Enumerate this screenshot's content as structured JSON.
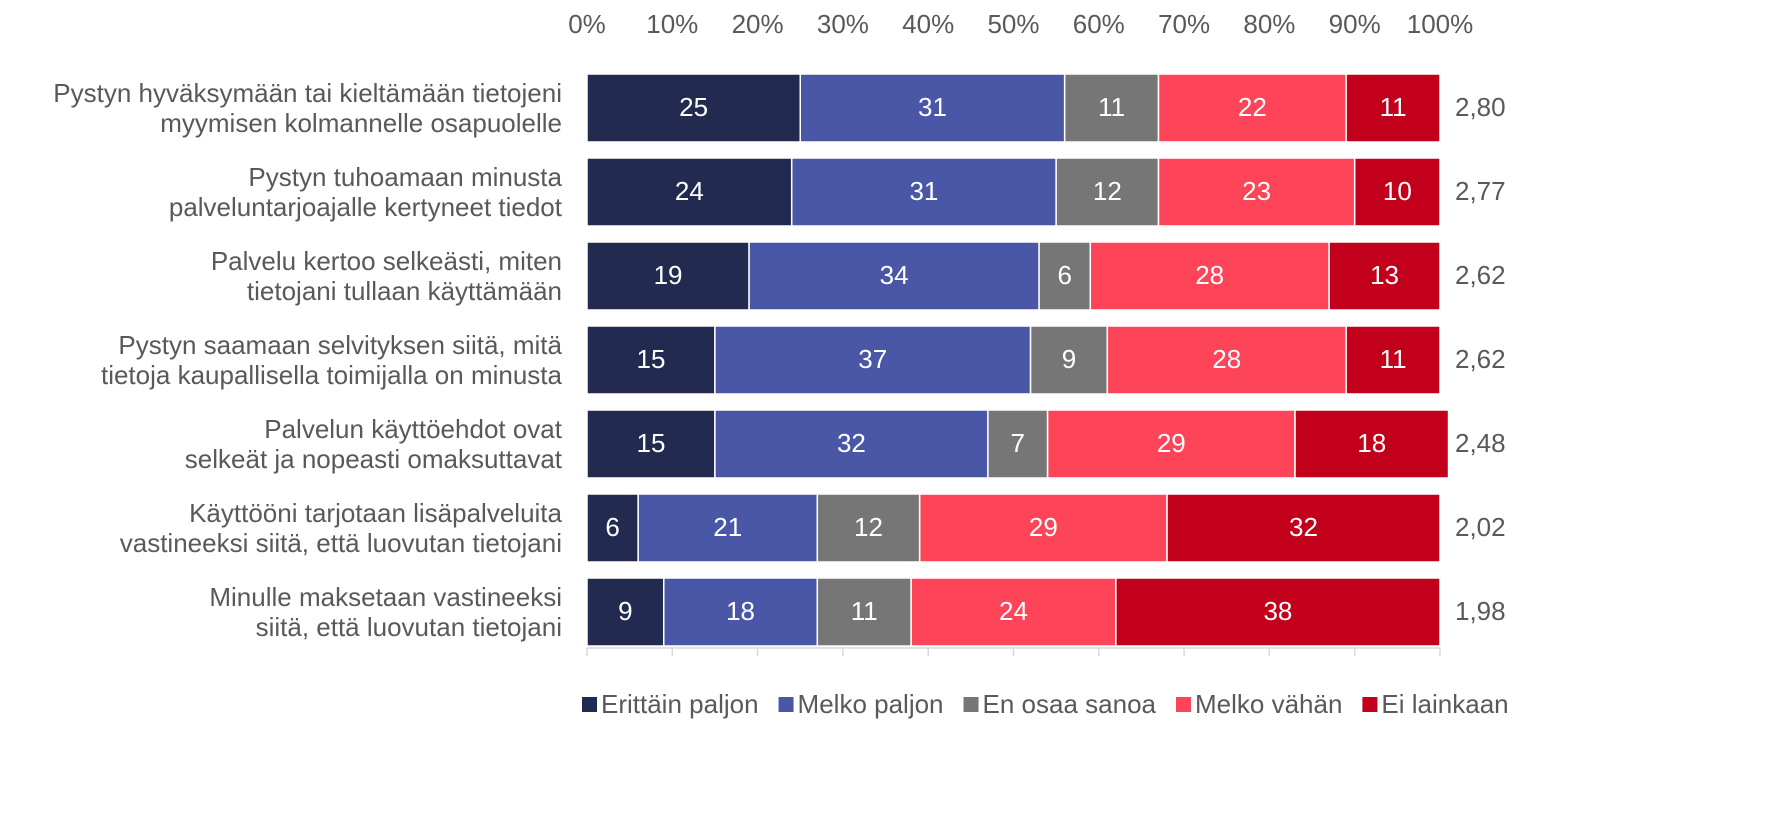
{
  "chart_data": {
    "type": "stacked-bar-horizontal",
    "categories": [
      "Pystyn hyväksymään tai kieltämään tietojeni\nmyymisen kolmannelle osapuolelle",
      "Pystyn tuhoamaan minusta\npalveluntarjoajalle kertyneet tiedot",
      "Palvelu kertoo selkeästi, miten\ntietojani tullaan käyttämään",
      "Pystyn saamaan selvityksen siitä, mitä\ntietoja kaupallisella toimijalla on minusta",
      "Palvelun käyttöehdot ovat\nselkeät ja nopeasti omaksuttavat",
      "Käyttööni tarjotaan lisäpalveluita\nvastineeksi siitä, että luovutan tietojani",
      "Minulle maksetaan vastineeksi\nsiitä, että luovutan tietojani"
    ],
    "series": [
      {
        "name": "Erittäin paljon",
        "color": "#222a4f",
        "values": [
          25,
          24,
          19,
          15,
          15,
          6,
          9
        ]
      },
      {
        "name": "Melko paljon",
        "color": "#4a56a6",
        "values": [
          31,
          31,
          34,
          37,
          32,
          21,
          18
        ]
      },
      {
        "name": "En osaa sanoa",
        "color": "#767676",
        "values": [
          11,
          12,
          6,
          9,
          7,
          12,
          11
        ]
      },
      {
        "name": "Melko vähän",
        "color": "#fe4459",
        "values": [
          22,
          23,
          28,
          28,
          29,
          29,
          24
        ]
      },
      {
        "name": "Ei lainkaan",
        "color": "#c3001b",
        "values": [
          11,
          10,
          13,
          11,
          18,
          32,
          38
        ]
      }
    ],
    "averages": [
      "2,80",
      "2,77",
      "2,62",
      "2,62",
      "2,48",
      "2,02",
      "1,98"
    ],
    "xlim": [
      0,
      100
    ],
    "xticks": [
      {
        "value": 0,
        "label": "0%"
      },
      {
        "value": 10,
        "label": "10%"
      },
      {
        "value": 20,
        "label": "20%"
      },
      {
        "value": 30,
        "label": "30%"
      },
      {
        "value": 40,
        "label": "40%"
      },
      {
        "value": 50,
        "label": "50%"
      },
      {
        "value": 60,
        "label": "60%"
      },
      {
        "value": 70,
        "label": "70%"
      },
      {
        "value": 80,
        "label": "80%"
      },
      {
        "value": 90,
        "label": "90%"
      },
      {
        "value": 100,
        "label": "100%"
      }
    ],
    "legend": "bottom"
  }
}
